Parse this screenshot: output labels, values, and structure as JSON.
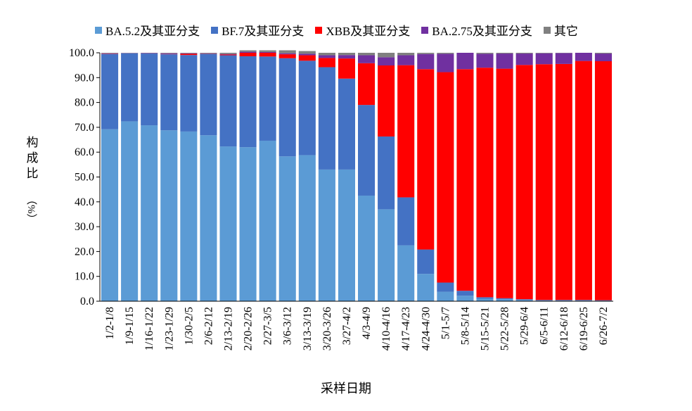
{
  "chart_data": {
    "type": "bar",
    "stacked": true,
    "title": "",
    "ylabel": "构成比",
    "ylabel_unit": "（%）",
    "xlabel": "采样日期",
    "ylim": [
      0,
      100
    ],
    "ytick_step": 10,
    "ytick_decimals": 1,
    "legend_position": "top",
    "categories": [
      "1/2-1/8",
      "1/9-1/15",
      "1/16-1/22",
      "1/23-1/29",
      "1/30-2/5",
      "2/6-2/12",
      "2/13-2/19",
      "2/20-2/26",
      "2/27-3/5",
      "3/6-3/12",
      "3/13-3/19",
      "3/20-3/26",
      "3/27-4/2",
      "4/3-4/9",
      "4/10-4/16",
      "4/17-4/23",
      "4/24-4/30",
      "5/1-5/7",
      "5/8-5/14",
      "5/15-5/21",
      "5/22-5/28",
      "5/29-6/4",
      "6/5-6/11",
      "6/12-6/18",
      "6/19-6/25",
      "6/26-7/2"
    ],
    "series": [
      {
        "name": "BA.5.2及其亚分支",
        "color": "#5B9BD5",
        "values": [
          69.2,
          72.4,
          70.8,
          68.8,
          68.3,
          66.8,
          62.3,
          62.0,
          64.6,
          58.3,
          58.8,
          53.0,
          53.0,
          42.5,
          37.0,
          22.5,
          11.0,
          3.8,
          2.2,
          1.0,
          0.8,
          0.5,
          0.3,
          0.3,
          0.3,
          0.2
        ]
      },
      {
        "name": "BF.7及其亚分支",
        "color": "#4472C4",
        "values": [
          30.3,
          27.4,
          28.9,
          30.6,
          30.8,
          32.8,
          36.7,
          36.6,
          33.9,
          39.5,
          38.0,
          41.2,
          36.6,
          36.5,
          29.3,
          19.3,
          9.8,
          3.7,
          2.0,
          0.6,
          0.4,
          0.3,
          0.2,
          0.2,
          0.2,
          0.2
        ]
      },
      {
        "name": "XBB及其亚分支",
        "color": "#FF0000",
        "values": [
          0.1,
          0.0,
          0.0,
          0.1,
          0.5,
          0.1,
          0.3,
          1.4,
          1.5,
          1.6,
          2.2,
          3.7,
          8.1,
          16.8,
          28.6,
          53.2,
          72.6,
          84.7,
          89.2,
          92.4,
          92.4,
          94.3,
          94.9,
          95.0,
          96.2,
          96.2
        ]
      },
      {
        "name": "BA.2.75及其亚分支",
        "color": "#7030A0",
        "values": [
          0.2,
          0.1,
          0.2,
          0.3,
          0.2,
          0.1,
          0.2,
          0.4,
          0.3,
          0.4,
          0.6,
          1.1,
          1.4,
          3.2,
          3.3,
          4.0,
          6.1,
          7.4,
          6.6,
          5.6,
          6.1,
          4.6,
          4.4,
          4.4,
          3.3,
          3.1
        ]
      },
      {
        "name": "其它",
        "color": "#808080",
        "values": [
          0.2,
          0.1,
          0.1,
          0.2,
          0.2,
          0.2,
          0.5,
          0.6,
          0.7,
          1.2,
          1.1,
          1.0,
          0.9,
          1.0,
          1.8,
          1.0,
          0.5,
          0.4,
          0.0,
          0.4,
          0.3,
          0.3,
          0.2,
          0.1,
          0.0,
          0.3
        ]
      }
    ]
  }
}
